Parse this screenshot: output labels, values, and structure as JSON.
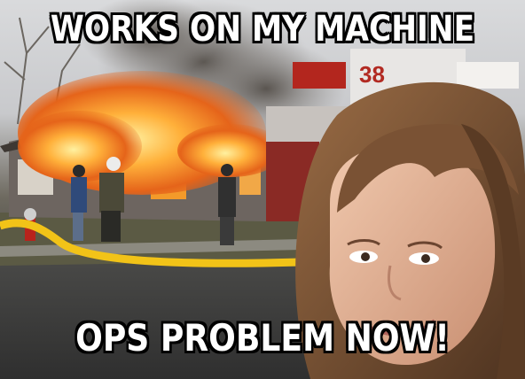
{
  "meme": {
    "template": "Disaster Girl",
    "top_text": "WORKS ON MY MACHINE",
    "bottom_text": "OPS PROBLEM NOW!",
    "truck_number": "38"
  },
  "colors": {
    "fire": "#f7941d",
    "sky": "#d9dadc",
    "hose": "#f2c318",
    "skin": "#e3b197",
    "hair": "#7a5234"
  }
}
